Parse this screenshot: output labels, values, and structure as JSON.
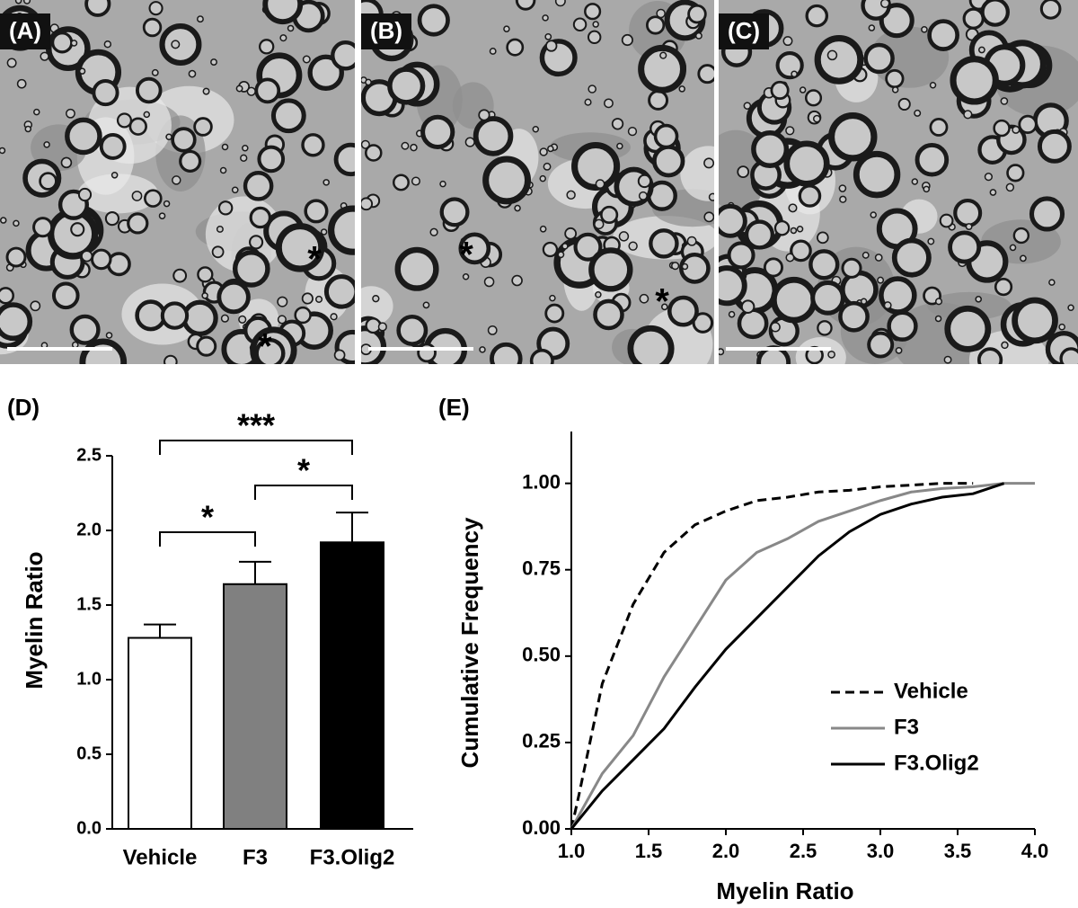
{
  "panels": [
    {
      "label": "(A)",
      "annotations": [
        "*",
        "*"
      ]
    },
    {
      "label": "(B)",
      "annotations": [
        "*",
        "*"
      ]
    },
    {
      "label": "(C)"
    }
  ],
  "chart_data": [
    {
      "type": "bar",
      "label": "(D)",
      "ylabel": "Myelin Ratio",
      "categories": [
        "Vehicle",
        "F3",
        "F3.Olig2"
      ],
      "values": [
        1.28,
        1.64,
        1.92
      ],
      "errors": [
        0.09,
        0.15,
        0.2
      ],
      "colors": [
        "#ffffff",
        "#808080",
        "#000000"
      ],
      "ylim": [
        0,
        2.5
      ],
      "yticks": [
        {
          "value": 0,
          "label": "0.0"
        },
        {
          "value": 0.5,
          "label": "0.5"
        },
        {
          "value": 1,
          "label": "1.0"
        },
        {
          "value": 1.5,
          "label": "1.5"
        },
        {
          "value": 2,
          "label": "2.0"
        },
        {
          "value": 2.5,
          "label": "2.5"
        }
      ],
      "significance": [
        {
          "pair": [
            "Vehicle",
            "F3"
          ],
          "label": "*"
        },
        {
          "pair": [
            "F3",
            "F3.Olig2"
          ],
          "label": "*"
        },
        {
          "pair": [
            "Vehicle",
            "F3.Olig2"
          ],
          "label": "***"
        }
      ]
    },
    {
      "type": "line",
      "label": "(E)",
      "xlabel": "Myelin Ratio",
      "ylabel": "Cumulative Frequency",
      "xlim": [
        1,
        4
      ],
      "ylim": [
        0,
        1.15
      ],
      "xticks": [
        {
          "value": 1,
          "label": "1.0"
        },
        {
          "value": 1.5,
          "label": "1.5"
        },
        {
          "value": 2,
          "label": "2.0"
        },
        {
          "value": 2.5,
          "label": "2.5"
        },
        {
          "value": 3,
          "label": "3.0"
        },
        {
          "value": 3.5,
          "label": "3.5"
        },
        {
          "value": 4,
          "label": "4.0"
        }
      ],
      "yticks": [
        {
          "value": 0,
          "label": "0.00"
        },
        {
          "value": 0.25,
          "label": "0.25"
        },
        {
          "value": 0.5,
          "label": "0.50"
        },
        {
          "value": 0.75,
          "label": "0.75"
        },
        {
          "value": 1,
          "label": "1.00"
        }
      ],
      "legend": "lower right",
      "series": [
        {
          "name": "Vehicle",
          "color": "#000000",
          "dashed": true,
          "x": [
            1.0,
            1.05,
            1.2,
            1.4,
            1.6,
            1.8,
            2.0,
            2.2,
            2.4,
            2.6,
            2.8,
            3.0,
            3.2,
            3.4,
            3.6
          ],
          "values": [
            0,
            0.1,
            0.42,
            0.65,
            0.8,
            0.88,
            0.92,
            0.95,
            0.96,
            0.975,
            0.98,
            0.99,
            0.995,
            1.0,
            1.0
          ]
        },
        {
          "name": "F3",
          "color": "#888888",
          "dashed": false,
          "x": [
            1.0,
            1.2,
            1.4,
            1.6,
            1.8,
            2.0,
            2.2,
            2.4,
            2.6,
            2.8,
            3.0,
            3.2,
            3.4,
            3.6,
            3.8,
            4.0
          ],
          "values": [
            0,
            0.16,
            0.27,
            0.44,
            0.58,
            0.72,
            0.8,
            0.84,
            0.89,
            0.92,
            0.95,
            0.975,
            0.985,
            0.99,
            1.0,
            1.0
          ]
        },
        {
          "name": "F3.Olig2",
          "color": "#000000",
          "dashed": false,
          "x": [
            1.0,
            1.2,
            1.4,
            1.6,
            1.8,
            2.0,
            2.2,
            2.4,
            2.6,
            2.8,
            3.0,
            3.2,
            3.4,
            3.6,
            3.8
          ],
          "values": [
            0,
            0.11,
            0.2,
            0.29,
            0.41,
            0.52,
            0.61,
            0.7,
            0.79,
            0.86,
            0.91,
            0.94,
            0.96,
            0.97,
            1.0
          ]
        }
      ]
    }
  ]
}
